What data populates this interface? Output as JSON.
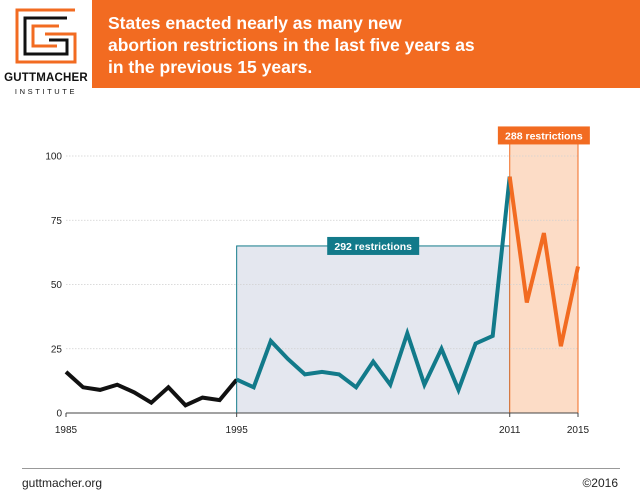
{
  "brand": {
    "name": "GUTTMACHER",
    "sub": "INSTITUTE",
    "accent_color": "#f26b21"
  },
  "headline": {
    "lines": [
      "States enacted nearly as many new",
      "abortion restrictions in the last five years as",
      "in the previous 15 years."
    ]
  },
  "footer": {
    "site": "guttmacher.org",
    "copyright": "©2016"
  },
  "chart_data": {
    "type": "line",
    "title": "States enacted nearly as many new abortion restrictions in the last five years as in the previous 15 years.",
    "xlabel": "",
    "ylabel": "",
    "xlim": [
      1985,
      2015
    ],
    "ylim": [
      0,
      100
    ],
    "x_ticks": [
      1985,
      1995,
      2011,
      2015
    ],
    "y_ticks": [
      0,
      25,
      50,
      75,
      100
    ],
    "grid": "horizontal",
    "series": [
      {
        "color": "#111111",
        "x": [
          1985,
          1986,
          1987,
          1988,
          1989,
          1990,
          1991,
          1992,
          1993,
          1994,
          1995
        ],
        "values": [
          16,
          10,
          9,
          11,
          8,
          4,
          10,
          3,
          6,
          5,
          13
        ]
      },
      {
        "color": "#127a8a",
        "x": [
          1995,
          1996,
          1997,
          1998,
          1999,
          2000,
          2001,
          2002,
          2003,
          2004,
          2005,
          2006,
          2007,
          2008,
          2009,
          2010,
          2011
        ],
        "values": [
          13,
          10,
          28,
          21,
          15,
          16,
          15,
          10,
          20,
          11,
          31,
          11,
          25,
          9,
          27,
          30,
          92
        ]
      },
      {
        "color": "#f26b21",
        "x": [
          2011,
          2012,
          2013,
          2014,
          2015
        ],
        "values": [
          92,
          43,
          70,
          26,
          57
        ]
      }
    ],
    "annotations": [
      {
        "label": "292 restrictions",
        "x_range": [
          1995,
          2011
        ],
        "box_top": 65,
        "color": "#127a8a",
        "fill": "#e4e7ef"
      },
      {
        "label": "288 restrictions",
        "x_range": [
          2011,
          2015
        ],
        "box_top": 108,
        "color": "#f26b21",
        "fill": "#fcdcc6"
      }
    ]
  }
}
